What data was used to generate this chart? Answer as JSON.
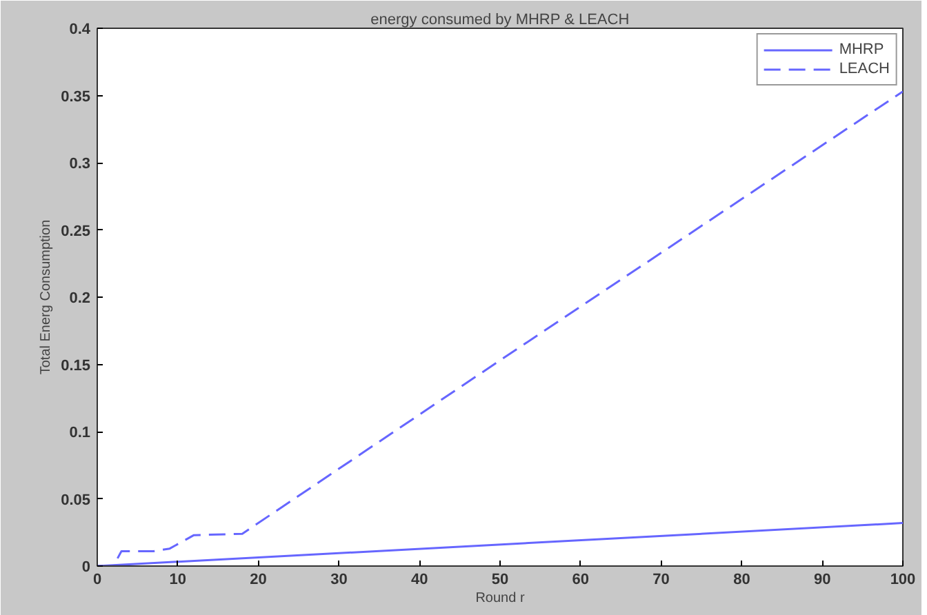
{
  "chart_data": {
    "type": "line",
    "title": "energy consumed by MHRP & LEACH",
    "xlabel": "Round r",
    "ylabel": "Total Energ Consumption",
    "xlim": [
      0,
      100
    ],
    "ylim": [
      0,
      0.4
    ],
    "xticks": [
      0,
      10,
      20,
      30,
      40,
      50,
      60,
      70,
      80,
      90,
      100
    ],
    "yticks": [
      0,
      0.05,
      0.1,
      0.15,
      0.2,
      0.25,
      0.3,
      0.35,
      0.4
    ],
    "grid": false,
    "legend": "top right",
    "marker": "none",
    "series": [
      {
        "name": "MHRP",
        "color": "#6666ff",
        "line_style": "solid",
        "x": [
          0,
          100
        ],
        "values": [
          0,
          0.032
        ]
      },
      {
        "name": "LEACH",
        "color": "#6666ff",
        "line_style": "dashed",
        "x": [
          0,
          2,
          3,
          7,
          9,
          12,
          18,
          50,
          96,
          100
        ],
        "values": [
          0,
          0,
          0.011,
          0.011,
          0.013,
          0.023,
          0.024,
          0.153,
          0.337,
          0.353
        ]
      }
    ]
  }
}
